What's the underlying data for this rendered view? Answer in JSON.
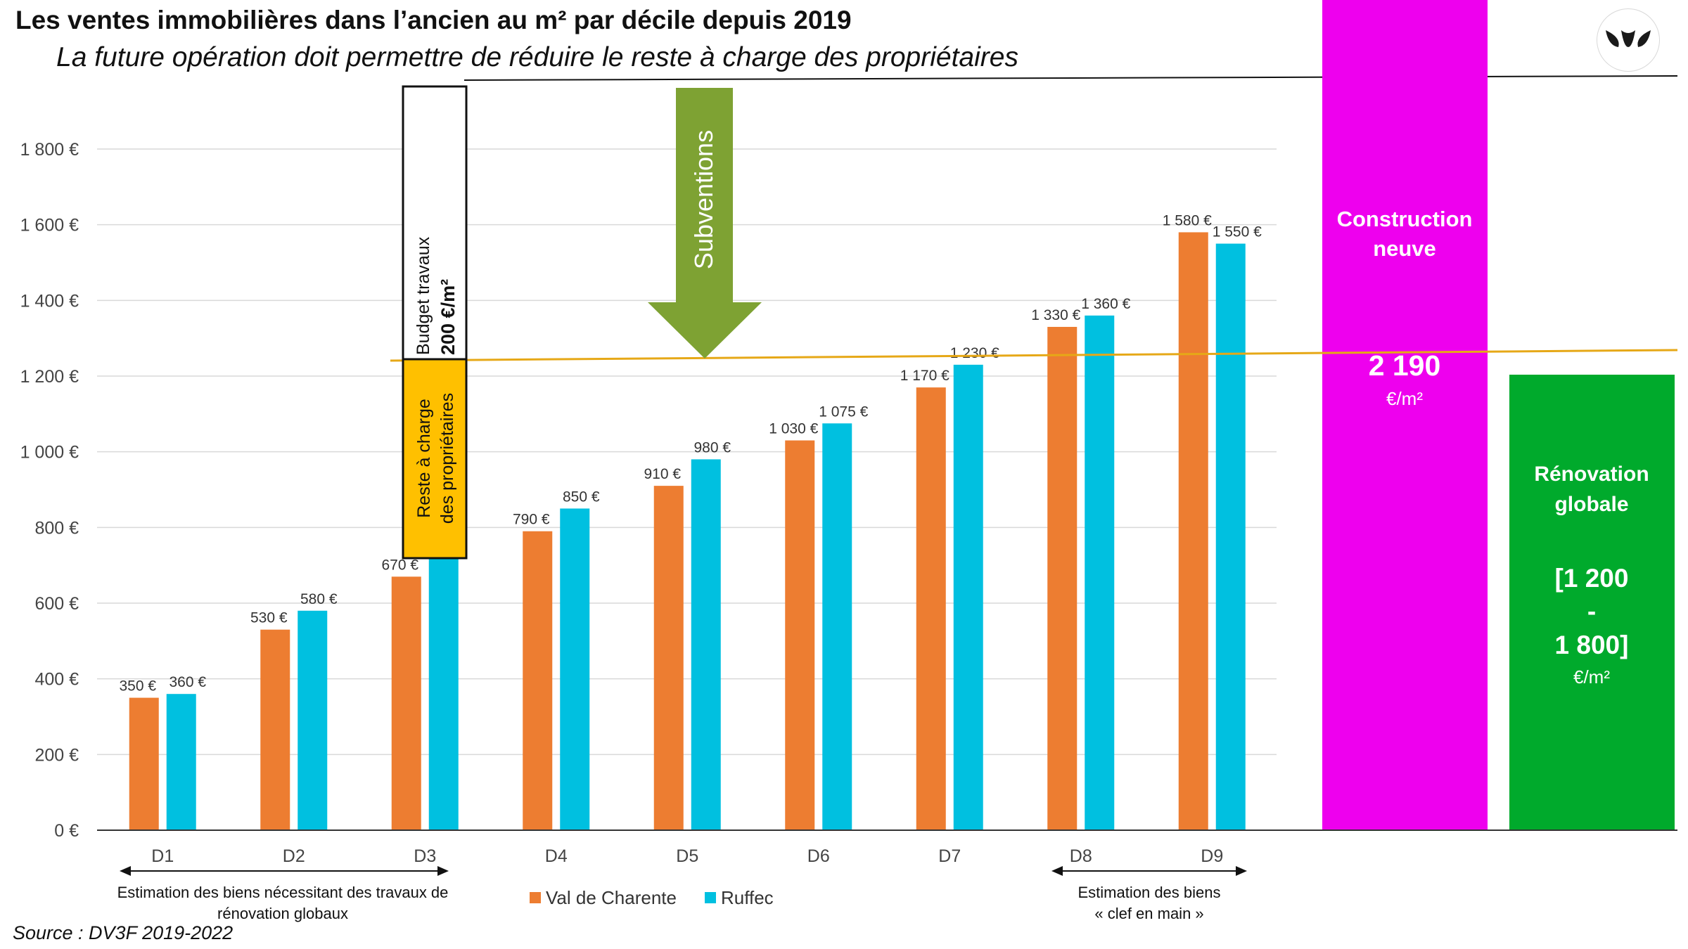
{
  "header": {
    "title": "Les ventes immobilières dans l’ancien au m² par décile depuis 2019",
    "subtitle": "La future opération doit permettre de réduire le reste à charge des propriétaires"
  },
  "source": "Source : DV3F 2019-2022",
  "logo": {
    "icon": "three-leaves-logo-icon"
  },
  "colors": {
    "val_de_charente": "#ED7D31",
    "ruffec": "#00C0E0",
    "construction_neuve": "#EE00EE",
    "renovation_globale": "#00AA2C",
    "reste_a_charge": "#FFC000",
    "subventions_arrow": "#7EA233",
    "trend_line": "#E6A817"
  },
  "chart_data": {
    "type": "bar",
    "categories": [
      "D1",
      "D2",
      "D3",
      "D4",
      "D5",
      "D6",
      "D7",
      "D8",
      "D9"
    ],
    "series": [
      {
        "name": "Val de Charente",
        "values": [
          350,
          530,
          670,
          790,
          910,
          1030,
          1170,
          1330,
          1580
        ],
        "labels": [
          "350 €",
          "530 €",
          "670 €",
          "790 €",
          "910 €",
          "1 030 €",
          "1 170 €",
          "1 330 €",
          "1 580 €"
        ]
      },
      {
        "name": "Ruffec",
        "values": [
          360,
          580,
          720,
          850,
          980,
          1075,
          1230,
          1360,
          1550
        ],
        "labels": [
          "360 €",
          "580 €",
          "",
          "850 €",
          "980 €",
          "1 075 €",
          "1 230 €",
          "1 360 €",
          "1 550 €"
        ]
      }
    ],
    "ylim": [
      0,
      1800
    ],
    "y_ticks": [
      0,
      200,
      400,
      600,
      800,
      1000,
      1200,
      1400,
      1600,
      1800
    ],
    "y_tick_labels": [
      "0 €",
      "200 €",
      "400 €",
      "600 €",
      "800 €",
      "1 000 €",
      "1 200 €",
      "1 400 €",
      "1 600 €",
      "1 800 €"
    ],
    "grid": true,
    "legend": "bottom",
    "legend_labels": [
      "Val de Charente",
      "Ruffec"
    ],
    "annotations": {
      "budget_travaux_line1": "Budget travaux",
      "budget_travaux_line2": "200 €/m²",
      "reste_a_charge_line1": "Reste à charge",
      "reste_a_charge_line2": "des propriétaires",
      "subventions": "Subventions",
      "range_left_line1": "Estimation des biens nécessitant des travaux de",
      "range_left_line2": "rénovation globaux",
      "range_right_line1": "Estimation des biens",
      "range_right_line2": "« clef en main »"
    },
    "construction_neuve": {
      "label_line1": "Construction",
      "label_line2": "neuve",
      "value": "2 190",
      "unit": "€/m²"
    },
    "renovation_globale": {
      "label_line1": "Rénovation",
      "label_line2": "globale",
      "range_line1": "[1 200",
      "range_line2": "-",
      "range_line3": "1 800]",
      "unit": "€/m²"
    }
  }
}
